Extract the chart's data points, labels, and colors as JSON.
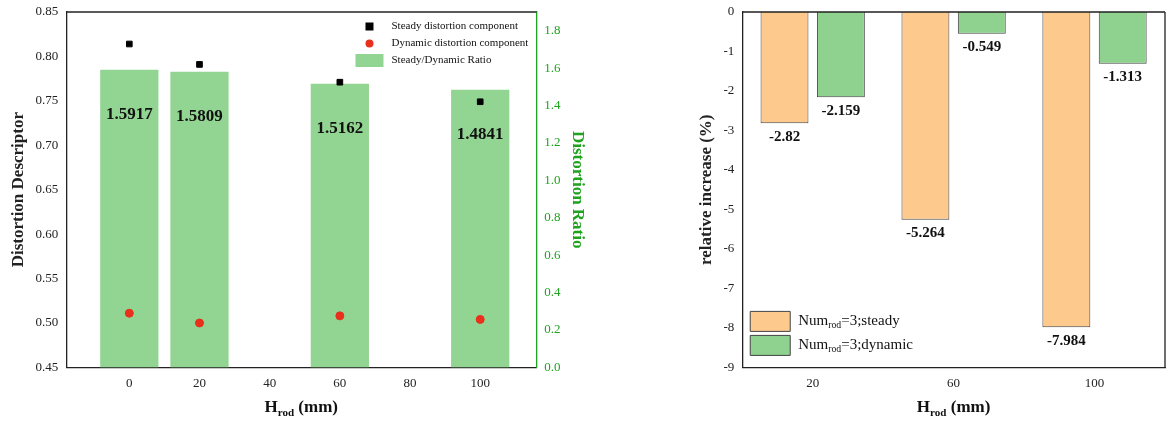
{
  "chart_data": [
    {
      "type": "scatter",
      "xlabel": "H$_{rod}$ (mm)",
      "ylabel": "Distortion Descriptor",
      "y2label": "Distortion Ratio",
      "xlim": [
        -18,
        116
      ],
      "xticks": [
        0,
        20,
        40,
        60,
        80,
        100
      ],
      "ylim": [
        0.45,
        0.85
      ],
      "yticks": [
        {
          "value": 0.45,
          "label": "0.45"
        },
        {
          "value": 0.5,
          "label": "0.50"
        },
        {
          "value": 0.55,
          "label": "0.55"
        },
        {
          "value": 0.6,
          "label": "0.60"
        },
        {
          "value": 0.65,
          "label": "0.65"
        },
        {
          "value": 0.7,
          "label": "0.70"
        },
        {
          "value": 0.75,
          "label": "0.75"
        },
        {
          "value": 0.8,
          "label": "0.80"
        },
        {
          "value": 0.85,
          "label": "0.85"
        }
      ],
      "y2lim": [
        0,
        1.9
      ],
      "y2ticks": [
        {
          "value": 0,
          "label": "0.0"
        },
        {
          "value": 0.2,
          "label": "0.2"
        },
        {
          "value": 0.4,
          "label": "0.4"
        },
        {
          "value": 0.6,
          "label": "0.6"
        },
        {
          "value": 0.8,
          "label": "0.8"
        },
        {
          "value": 1,
          "label": "1.0"
        },
        {
          "value": 1.2,
          "label": "1.2"
        },
        {
          "value": 1.4,
          "label": "1.4"
        },
        {
          "value": 1.6,
          "label": "1.6"
        },
        {
          "value": 1.8,
          "label": "1.8"
        }
      ],
      "legend": "top right",
      "series": [
        {
          "name": "Steady distortion component",
          "type": "scatter",
          "marker": "square",
          "color": "#000000",
          "x": [
            0,
            20,
            60,
            100
          ],
          "values": [
            0.814,
            0.791,
            0.771,
            0.749
          ]
        },
        {
          "name": "Dynamic distortion component",
          "type": "scatter",
          "marker": "circle",
          "color": "#e8301c",
          "x": [
            0,
            20,
            60,
            100
          ],
          "values": [
            0.511,
            0.5,
            0.508,
            0.504
          ]
        },
        {
          "name": "Steady/Dynamic Ratio",
          "type": "bar",
          "axis": "y2",
          "color": "#92d592",
          "x": [
            0,
            20,
            60,
            100
          ],
          "values": [
            1.5917,
            1.5809,
            1.5162,
            1.4841
          ],
          "value_labels": [
            "1.5917",
            "1.5809",
            "1.5162",
            "1.4841"
          ]
        }
      ]
    },
    {
      "type": "bar",
      "categories": [
        "20",
        "60",
        "100"
      ],
      "xlabel": "H$_{rod}$ (mm)",
      "ylabel": "relative increase (%)",
      "ylim": [
        -9,
        0
      ],
      "yticks": [
        -9,
        -8,
        -7,
        -6,
        -5,
        -4,
        -3,
        -2,
        -1,
        0
      ],
      "legend": "bottom left",
      "data_labels": true,
      "series": [
        {
          "name": "Num$_{rod}$=3;steady",
          "color": "#fdc98d",
          "values": [
            -2.82,
            -5.264,
            -7.984
          ]
        },
        {
          "name": "Num$_{rod}$=3;dynamic",
          "color": "#8fd18f",
          "values": [
            -2.159,
            -0.549,
            -1.313
          ]
        }
      ]
    }
  ]
}
